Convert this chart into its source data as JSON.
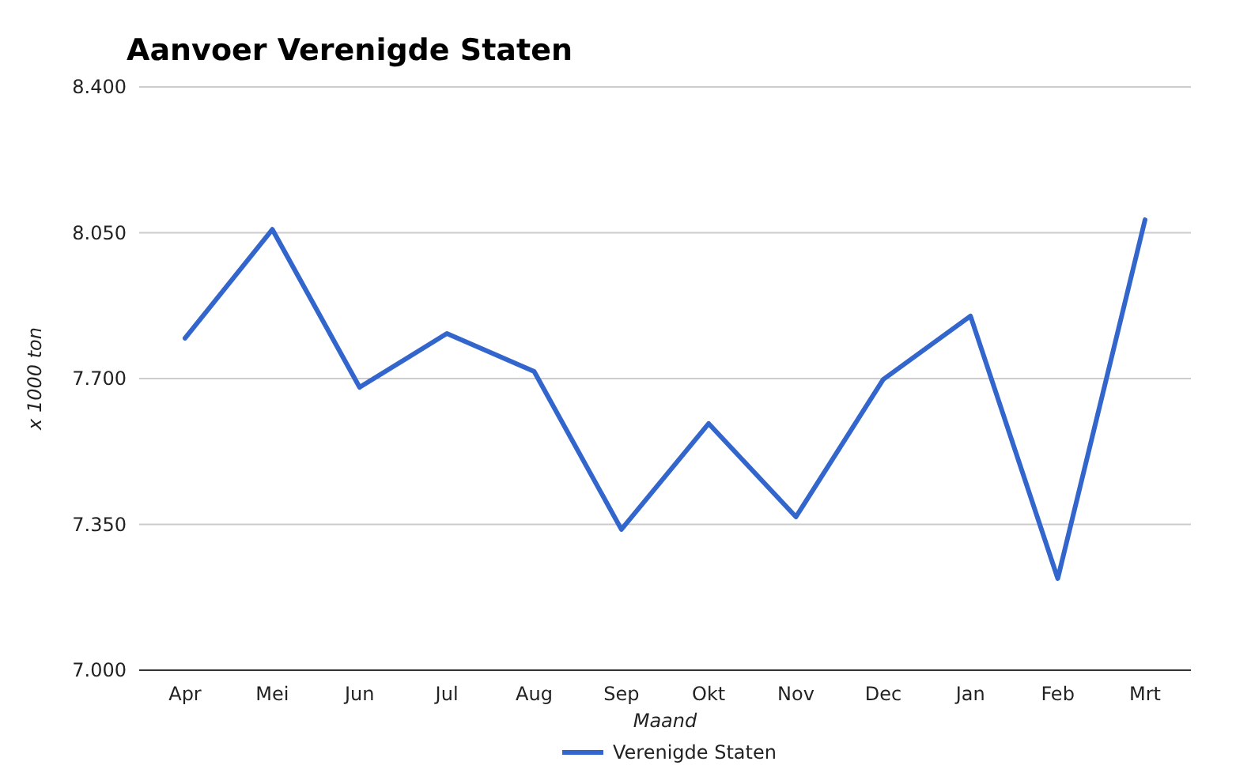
{
  "chart_data": {
    "type": "line",
    "title": "Aanvoer Verenigde Staten",
    "xlabel": "Maand",
    "ylabel": "x 1000 ton",
    "categories": [
      "Apr",
      "Mei",
      "Jun",
      "Jul",
      "Aug",
      "Sep",
      "Okt",
      "Nov",
      "Dec",
      "Jan",
      "Feb",
      "Mrt"
    ],
    "series": [
      {
        "name": "Verenigde Staten",
        "color": "#3366cc",
        "values": [
          7797,
          8058,
          7679,
          7808,
          7717,
          7338,
          7592,
          7368,
          7698,
          7850,
          7220,
          8081
        ]
      }
    ],
    "ylim": [
      7000,
      8400
    ],
    "yticks": [
      {
        "value": 7000,
        "label": "7.000"
      },
      {
        "value": 7350,
        "label": "7.350"
      },
      {
        "value": 7700,
        "label": "7.700"
      },
      {
        "value": 8050,
        "label": "8.050"
      },
      {
        "value": 8400,
        "label": "8.400"
      }
    ],
    "grid": "y",
    "legend": "bottom",
    "marker": "none",
    "line_style": "solid"
  }
}
